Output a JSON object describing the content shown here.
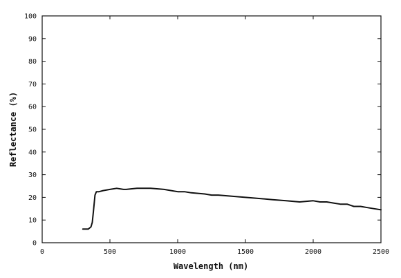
{
  "chart_data": {
    "type": "line",
    "title": "",
    "xlabel": "Wavelength (nm)",
    "ylabel": "Reflectance (%)",
    "xlim": [
      0,
      2500
    ],
    "ylim": [
      0,
      100
    ],
    "grid": false,
    "x_ticks": [
      0,
      500,
      1000,
      1500,
      2000,
      2500
    ],
    "x_tick_labels": [
      "0",
      "500",
      "1000",
      "1500",
      "2000",
      "2500"
    ],
    "y_ticks": [
      0,
      10,
      20,
      30,
      40,
      50,
      60,
      70,
      80,
      90,
      100
    ],
    "y_tick_labels": [
      "0",
      "10",
      "20",
      "30",
      "40",
      "50",
      "60",
      "70",
      "80",
      "90",
      "100"
    ],
    "series": [
      {
        "color": "#111111",
        "x": [
          300,
          340,
          360,
          370,
          380,
          390,
          400,
          420,
          450,
          500,
          550,
          600,
          620,
          700,
          800,
          900,
          1000,
          1050,
          1100,
          1200,
          1250,
          1300,
          1400,
          1500,
          1600,
          1700,
          1800,
          1900,
          2000,
          2050,
          2100,
          2150,
          2200,
          2250,
          2300,
          2350,
          2400,
          2450,
          2500
        ],
        "y": [
          6,
          6,
          7,
          9,
          15,
          21,
          22.5,
          22.5,
          23,
          23.5,
          24,
          23.5,
          23.5,
          24,
          24,
          23.5,
          22.5,
          22.5,
          22,
          21.5,
          21,
          21,
          20.5,
          20,
          19.5,
          19,
          18.5,
          18,
          18.5,
          18,
          18,
          17.5,
          17,
          17,
          16,
          16,
          15.5,
          15,
          14.5
        ]
      }
    ]
  }
}
